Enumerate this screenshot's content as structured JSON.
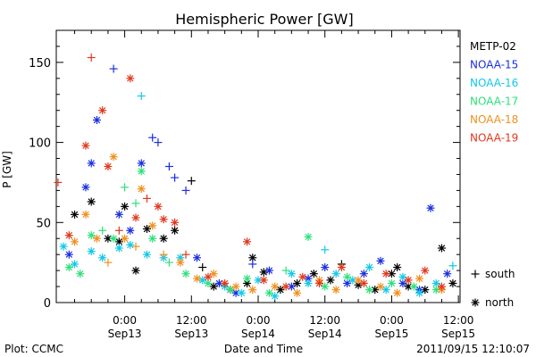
{
  "chart_data": {
    "type": "scatter",
    "title": "Hemispheric Power [GW]",
    "xlabel": "Date and Time",
    "ylabel": "P [GW]",
    "ylim": [
      0,
      170
    ],
    "xlim": [
      -12.3,
      60.3
    ],
    "x_ticks": [
      {
        "x": 0,
        "time": "0:00",
        "date": "Sep13"
      },
      {
        "x": 12,
        "time": "12:00",
        "date": "Sep13"
      },
      {
        "x": 24,
        "time": "0:00",
        "date": "Sep14"
      },
      {
        "x": 36,
        "time": "12:00",
        "date": "Sep14"
      },
      {
        "x": 48,
        "time": "0:00",
        "date": "Sep15"
      },
      {
        "x": 60,
        "time": "12:00",
        "date": "Sep15"
      }
    ],
    "y_ticks": [
      0,
      50,
      100,
      150
    ],
    "grid": false,
    "legend_placement": "right",
    "series": [
      {
        "name": "METP-02",
        "color": "#000000",
        "points": [
          {
            "x": -9,
            "y": 55,
            "m": "*"
          },
          {
            "x": -6,
            "y": 63,
            "m": "*"
          },
          {
            "x": -3,
            "y": 40,
            "m": "*"
          },
          {
            "x": -1,
            "y": 38,
            "m": "*"
          },
          {
            "x": 0,
            "y": 60,
            "m": "*"
          },
          {
            "x": 2,
            "y": 20,
            "m": "*"
          },
          {
            "x": 4,
            "y": 46,
            "m": "*"
          },
          {
            "x": 7,
            "y": 40,
            "m": "*"
          },
          {
            "x": 9,
            "y": 45,
            "m": "*"
          },
          {
            "x": 12,
            "y": 76,
            "m": "+"
          },
          {
            "x": 14,
            "y": 22,
            "m": "+"
          },
          {
            "x": 16,
            "y": 10,
            "m": "*"
          },
          {
            "x": 19,
            "y": 8,
            "m": "*"
          },
          {
            "x": 22,
            "y": 12,
            "m": "*"
          },
          {
            "x": 23,
            "y": 28,
            "m": "*"
          },
          {
            "x": 25,
            "y": 19,
            "m": "*"
          },
          {
            "x": 28,
            "y": 8,
            "m": "*"
          },
          {
            "x": 31,
            "y": 12,
            "m": "*"
          },
          {
            "x": 34,
            "y": 18,
            "m": "*"
          },
          {
            "x": 37,
            "y": 14,
            "m": "*"
          },
          {
            "x": 39,
            "y": 24,
            "m": "+"
          },
          {
            "x": 42,
            "y": 11,
            "m": "*"
          },
          {
            "x": 45,
            "y": 8,
            "m": "*"
          },
          {
            "x": 48,
            "y": 18,
            "m": "*"
          },
          {
            "x": 49,
            "y": 22,
            "m": "*"
          },
          {
            "x": 51,
            "y": 10,
            "m": "*"
          },
          {
            "x": 54,
            "y": 8,
            "m": "*"
          },
          {
            "x": 57,
            "y": 34,
            "m": "*"
          },
          {
            "x": 59,
            "y": 12,
            "m": "*"
          }
        ]
      },
      {
        "name": "NOAA-15",
        "color": "#1a2ee0",
        "points": [
          {
            "x": -10,
            "y": 30,
            "m": "*"
          },
          {
            "x": -7,
            "y": 72,
            "m": "*"
          },
          {
            "x": -6,
            "y": 87,
            "m": "*"
          },
          {
            "x": -5,
            "y": 114,
            "m": "*"
          },
          {
            "x": -2,
            "y": 146,
            "m": "+"
          },
          {
            "x": -1,
            "y": 55,
            "m": "*"
          },
          {
            "x": 1,
            "y": 45,
            "m": "*"
          },
          {
            "x": 3,
            "y": 87,
            "m": "*"
          },
          {
            "x": 5,
            "y": 103,
            "m": "+"
          },
          {
            "x": 6,
            "y": 100,
            "m": "+"
          },
          {
            "x": 8,
            "y": 85,
            "m": "+"
          },
          {
            "x": 9,
            "y": 78,
            "m": "+"
          },
          {
            "x": 11,
            "y": 70,
            "m": "+"
          },
          {
            "x": 13,
            "y": 28,
            "m": "*"
          },
          {
            "x": 17,
            "y": 12,
            "m": "*"
          },
          {
            "x": 20,
            "y": 6,
            "m": "*"
          },
          {
            "x": 23,
            "y": 24,
            "m": "+"
          },
          {
            "x": 26,
            "y": 20,
            "m": "*"
          },
          {
            "x": 30,
            "y": 10,
            "m": "*"
          },
          {
            "x": 33,
            "y": 15,
            "m": "*"
          },
          {
            "x": 36,
            "y": 22,
            "m": "*"
          },
          {
            "x": 40,
            "y": 12,
            "m": "*"
          },
          {
            "x": 43,
            "y": 18,
            "m": "*"
          },
          {
            "x": 46,
            "y": 26,
            "m": "*"
          },
          {
            "x": 50,
            "y": 12,
            "m": "*"
          },
          {
            "x": 53,
            "y": 8,
            "m": "*"
          },
          {
            "x": 55,
            "y": 59,
            "m": "*"
          },
          {
            "x": 58,
            "y": 18,
            "m": "*"
          }
        ]
      },
      {
        "name": "NOAA-16",
        "color": "#12c8e8",
        "points": [
          {
            "x": -11,
            "y": 35,
            "m": "*"
          },
          {
            "x": -9,
            "y": 24,
            "m": "*"
          },
          {
            "x": -6,
            "y": 32,
            "m": "*"
          },
          {
            "x": -4,
            "y": 28,
            "m": "*"
          },
          {
            "x": -1,
            "y": 34,
            "m": "*"
          },
          {
            "x": 1,
            "y": 36,
            "m": "*"
          },
          {
            "x": 3,
            "y": 129,
            "m": "+"
          },
          {
            "x": 4,
            "y": 30,
            "m": "*"
          },
          {
            "x": 7,
            "y": 28,
            "m": "*"
          },
          {
            "x": 10,
            "y": 28,
            "m": "*"
          },
          {
            "x": 14,
            "y": 14,
            "m": "*"
          },
          {
            "x": 18,
            "y": 10,
            "m": "*"
          },
          {
            "x": 21,
            "y": 6,
            "m": "*"
          },
          {
            "x": 24,
            "y": 14,
            "m": "*"
          },
          {
            "x": 27,
            "y": 4,
            "m": "*"
          },
          {
            "x": 30,
            "y": 18,
            "m": "*"
          },
          {
            "x": 33,
            "y": 12,
            "m": "*"
          },
          {
            "x": 36,
            "y": 33,
            "m": "+"
          },
          {
            "x": 38,
            "y": 18,
            "m": "*"
          },
          {
            "x": 41,
            "y": 14,
            "m": "*"
          },
          {
            "x": 44,
            "y": 22,
            "m": "*"
          },
          {
            "x": 47,
            "y": 8,
            "m": "*"
          },
          {
            "x": 50,
            "y": 16,
            "m": "*"
          },
          {
            "x": 53,
            "y": 6,
            "m": "*"
          },
          {
            "x": 56,
            "y": 12,
            "m": "*"
          },
          {
            "x": 59,
            "y": 23,
            "m": "+"
          }
        ]
      },
      {
        "name": "NOAA-17",
        "color": "#2fe07a",
        "points": [
          {
            "x": -10,
            "y": 22,
            "m": "*"
          },
          {
            "x": -8,
            "y": 18,
            "m": "*"
          },
          {
            "x": -6,
            "y": 42,
            "m": "*"
          },
          {
            "x": -4,
            "y": 45,
            "m": "+"
          },
          {
            "x": -2,
            "y": 40,
            "m": "*"
          },
          {
            "x": 0,
            "y": 72,
            "m": "+"
          },
          {
            "x": 2,
            "y": 62,
            "m": "+"
          },
          {
            "x": 3,
            "y": 82,
            "m": "*"
          },
          {
            "x": 5,
            "y": 40,
            "m": "*"
          },
          {
            "x": 8,
            "y": 25,
            "m": "+"
          },
          {
            "x": 11,
            "y": 18,
            "m": "*"
          },
          {
            "x": 15,
            "y": 12,
            "m": "*"
          },
          {
            "x": 19,
            "y": 8,
            "m": "*"
          },
          {
            "x": 22,
            "y": 15,
            "m": "*"
          },
          {
            "x": 26,
            "y": 6,
            "m": "*"
          },
          {
            "x": 29,
            "y": 20,
            "m": "+"
          },
          {
            "x": 33,
            "y": 41,
            "m": "*"
          },
          {
            "x": 36,
            "y": 10,
            "m": "*"
          },
          {
            "x": 40,
            "y": 16,
            "m": "*"
          },
          {
            "x": 44,
            "y": 8,
            "m": "*"
          },
          {
            "x": 48,
            "y": 12,
            "m": "*"
          },
          {
            "x": 52,
            "y": 10,
            "m": "*"
          },
          {
            "x": 56,
            "y": 8,
            "m": "*"
          }
        ]
      },
      {
        "name": "NOAA-18",
        "color": "#f0901e",
        "points": [
          {
            "x": -9,
            "y": 38,
            "m": "*"
          },
          {
            "x": -7,
            "y": 55,
            "m": "*"
          },
          {
            "x": -5,
            "y": 40,
            "m": "*"
          },
          {
            "x": -3,
            "y": 25,
            "m": "+"
          },
          {
            "x": -2,
            "y": 91,
            "m": "*"
          },
          {
            "x": 0,
            "y": 40,
            "m": "*"
          },
          {
            "x": 2,
            "y": 35,
            "m": "+"
          },
          {
            "x": 3,
            "y": 71,
            "m": "*"
          },
          {
            "x": 5,
            "y": 48,
            "m": "*"
          },
          {
            "x": 7,
            "y": 30,
            "m": "+"
          },
          {
            "x": 10,
            "y": 25,
            "m": "*"
          },
          {
            "x": 13,
            "y": 15,
            "m": "*"
          },
          {
            "x": 16,
            "y": 18,
            "m": "*"
          },
          {
            "x": 20,
            "y": 10,
            "m": "*"
          },
          {
            "x": 23,
            "y": 8,
            "m": "*"
          },
          {
            "x": 27,
            "y": 10,
            "m": "*"
          },
          {
            "x": 31,
            "y": 6,
            "m": "*"
          },
          {
            "x": 35,
            "y": 14,
            "m": "*"
          },
          {
            "x": 38,
            "y": 8,
            "m": "*"
          },
          {
            "x": 42,
            "y": 14,
            "m": "*"
          },
          {
            "x": 46,
            "y": 10,
            "m": "*"
          },
          {
            "x": 49,
            "y": 6,
            "m": "*"
          },
          {
            "x": 53,
            "y": 15,
            "m": "*"
          },
          {
            "x": 57,
            "y": 8,
            "m": "*"
          }
        ]
      },
      {
        "name": "NOAA-19",
        "color": "#e0381e",
        "points": [
          {
            "x": -12,
            "y": 75,
            "m": "+"
          },
          {
            "x": -10,
            "y": 42,
            "m": "*"
          },
          {
            "x": -7,
            "y": 98,
            "m": "*"
          },
          {
            "x": -6,
            "y": 153,
            "m": "+"
          },
          {
            "x": -4,
            "y": 120,
            "m": "*"
          },
          {
            "x": -3,
            "y": 85,
            "m": "*"
          },
          {
            "x": -1,
            "y": 45,
            "m": "+"
          },
          {
            "x": 1,
            "y": 140,
            "m": "*"
          },
          {
            "x": 2,
            "y": 53,
            "m": "*"
          },
          {
            "x": 4,
            "y": 65,
            "m": "+"
          },
          {
            "x": 6,
            "y": 60,
            "m": "*"
          },
          {
            "x": 7,
            "y": 52,
            "m": "*"
          },
          {
            "x": 9,
            "y": 50,
            "m": "*"
          },
          {
            "x": 11,
            "y": 30,
            "m": "+"
          },
          {
            "x": 15,
            "y": 16,
            "m": "*"
          },
          {
            "x": 18,
            "y": 12,
            "m": "*"
          },
          {
            "x": 22,
            "y": 38,
            "m": "*"
          },
          {
            "x": 25,
            "y": 14,
            "m": "*"
          },
          {
            "x": 29,
            "y": 10,
            "m": "*"
          },
          {
            "x": 32,
            "y": 16,
            "m": "*"
          },
          {
            "x": 35,
            "y": 12,
            "m": "*"
          },
          {
            "x": 39,
            "y": 22,
            "m": "*"
          },
          {
            "x": 43,
            "y": 12,
            "m": "*"
          },
          {
            "x": 47,
            "y": 18,
            "m": "*"
          },
          {
            "x": 51,
            "y": 14,
            "m": "*"
          },
          {
            "x": 54,
            "y": 20,
            "m": "*"
          },
          {
            "x": 57,
            "y": 10,
            "m": "*"
          }
        ]
      }
    ],
    "marker_key": [
      {
        "symbol": "+",
        "label": "south"
      },
      {
        "symbol": "*",
        "label": "north"
      }
    ]
  },
  "footer": {
    "plot_credit": "Plot: CCMC",
    "timestamp": "2011/09/15 12:10:07"
  }
}
